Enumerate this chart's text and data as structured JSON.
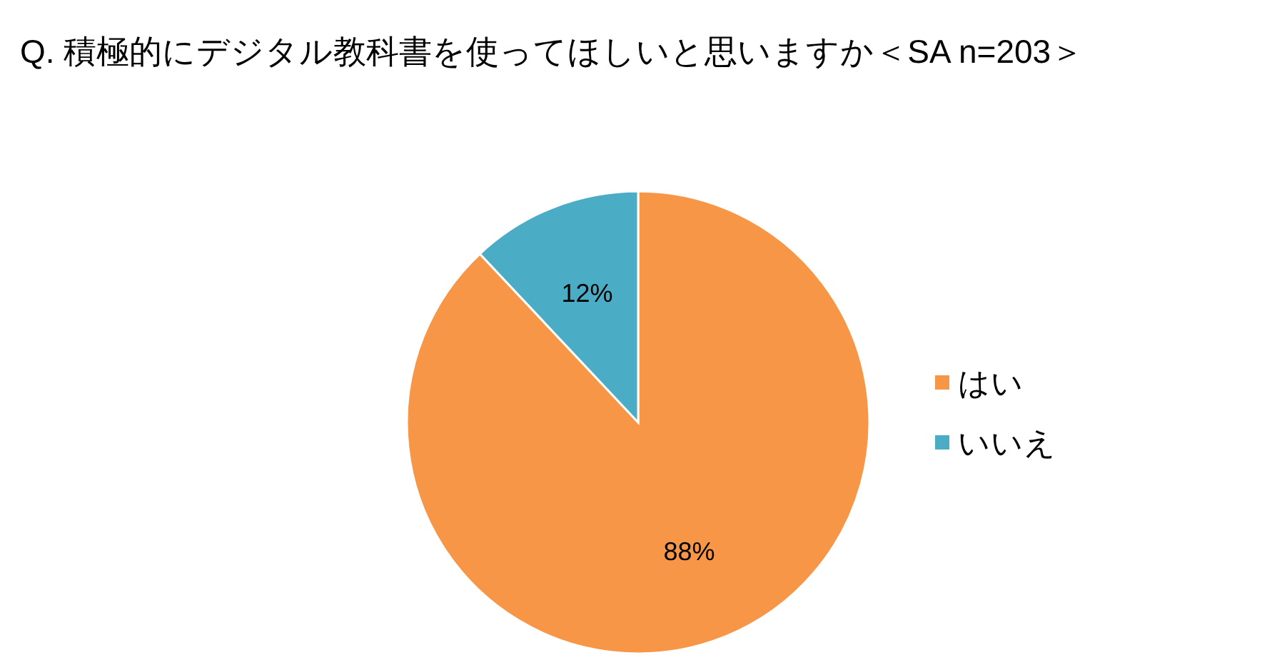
{
  "chart_data": {
    "type": "pie",
    "title": "Q. 積極的にデジタル教科書を使ってほしいと思いますか＜SA n=203＞",
    "categories": [
      "はい",
      "いいえ"
    ],
    "values": [
      88,
      12
    ],
    "colors": [
      "#f79646",
      "#4bacc6"
    ],
    "value_labels": [
      "88%",
      "12%"
    ],
    "legend": "right"
  }
}
